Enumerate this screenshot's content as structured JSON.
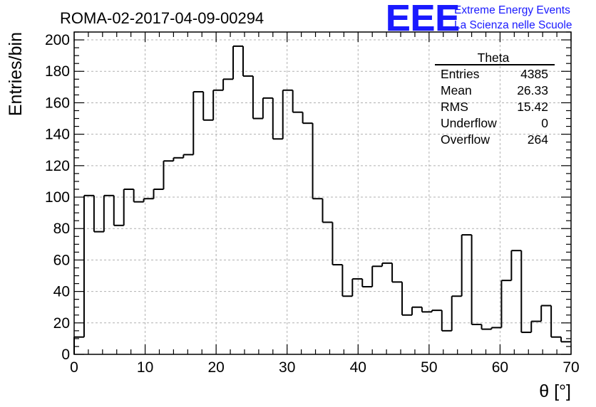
{
  "chart_data": {
    "type": "histogram",
    "title": "ROMA-02-2017-04-09-00294",
    "xlabel": "θ [°]",
    "ylabel": "Entries/bin",
    "xlim": [
      0,
      70
    ],
    "ylim": [
      0,
      205
    ],
    "x_ticks": [
      0,
      10,
      20,
      30,
      40,
      50,
      60,
      70
    ],
    "y_ticks": [
      0,
      20,
      40,
      60,
      80,
      100,
      120,
      140,
      160,
      180,
      200
    ],
    "grid": true,
    "bin_width": 1.4,
    "values": [
      11,
      101,
      78,
      101,
      82,
      105,
      97,
      99,
      105,
      123,
      125,
      127,
      167,
      149,
      168,
      175,
      196,
      177,
      150,
      163,
      137,
      168,
      154,
      147,
      99,
      84,
      57,
      37,
      48,
      43,
      56,
      58,
      46,
      25,
      30,
      27,
      28,
      15,
      37,
      76,
      19,
      16,
      17,
      47,
      66,
      14,
      21,
      31,
      11,
      8
    ],
    "stats_box": {
      "name": "Theta",
      "rows": [
        {
          "label": "Entries",
          "value": "4385"
        },
        {
          "label": "Mean",
          "value": "26.33"
        },
        {
          "label": "RMS",
          "value": "15.42"
        },
        {
          "label": "Underflow",
          "value": "0"
        },
        {
          "label": "Overflow",
          "value": "264"
        }
      ]
    }
  },
  "logo": {
    "mark": "EEE",
    "line1": "Extreme Energy Events",
    "line2": "La Scienza nelle Scuole",
    "color": "#1a1aff"
  },
  "colors": {
    "line": "#000000",
    "grid": "#b0b0b0"
  }
}
